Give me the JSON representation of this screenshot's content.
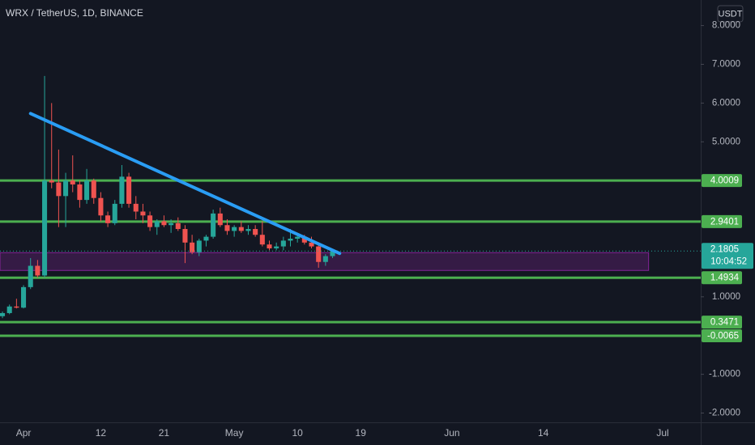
{
  "chart_data": {
    "type": "candlestick",
    "title": "WRX / TetherUS, 1D, BINANCE",
    "currency": "USDT",
    "countdown": "10:04:52",
    "categories": [
      null,
      null,
      null,
      "Apr",
      null,
      null,
      null,
      null,
      null,
      null,
      null,
      null,
      null,
      null,
      "12",
      null,
      null,
      null,
      null,
      null,
      null,
      null,
      null,
      "21",
      null,
      null,
      null,
      null,
      null,
      null,
      null,
      null,
      null,
      "May",
      null,
      null,
      null,
      null,
      null,
      null,
      null,
      null,
      "10",
      null,
      null,
      null,
      null,
      null,
      null,
      null,
      null,
      "19",
      null,
      null,
      null,
      null,
      null,
      null,
      null,
      null,
      null,
      null,
      null,
      null,
      "Jun",
      null,
      null,
      null,
      null,
      null,
      null,
      null,
      null,
      null,
      null,
      null,
      null,
      "14",
      null,
      null,
      null,
      null,
      null,
      null,
      null,
      null,
      null,
      null,
      null,
      null,
      null,
      null,
      null,
      null,
      "Jul",
      null,
      null,
      null,
      null,
      null
    ],
    "open": [
      0.5,
      0.58,
      0.75,
      0.72,
      1.25,
      1.8,
      1.55,
      4.0,
      3.95,
      3.6,
      4.0,
      3.9,
      3.5,
      4.0,
      3.55,
      3.1,
      2.9,
      3.4,
      4.1,
      3.4,
      3.2,
      3.1,
      2.8,
      2.95,
      2.85,
      2.9,
      2.75,
      2.4,
      2.15,
      2.45,
      2.55,
      3.15,
      2.85,
      2.7,
      2.8,
      2.7,
      2.75,
      2.6,
      2.35,
      2.25,
      2.3,
      2.45,
      2.5,
      2.55,
      2.4,
      2.3,
      1.9,
      2.05,
      null,
      null,
      null,
      null,
      null,
      null,
      null,
      null,
      null,
      null,
      null,
      null,
      null,
      null,
      null,
      null,
      null,
      null,
      null,
      null,
      null,
      null,
      null,
      null,
      null,
      null,
      null,
      null,
      null,
      null,
      null,
      null,
      null,
      null,
      null,
      null,
      null,
      null,
      null,
      null,
      null,
      null,
      null,
      null,
      null,
      null,
      null,
      null,
      null,
      null,
      null,
      null
    ],
    "high": [
      0.62,
      0.8,
      0.95,
      1.3,
      2.0,
      1.95,
      6.7,
      6.0,
      4.8,
      4.2,
      4.65,
      4.0,
      4.3,
      4.05,
      3.7,
      3.2,
      3.5,
      4.4,
      4.2,
      3.6,
      3.4,
      3.2,
      3.0,
      3.1,
      3.0,
      3.05,
      2.85,
      2.6,
      2.5,
      2.6,
      3.25,
      3.3,
      3.0,
      2.85,
      2.95,
      2.85,
      2.85,
      2.95,
      2.45,
      2.4,
      2.55,
      2.75,
      2.65,
      2.6,
      2.55,
      2.4,
      2.1,
      2.2,
      null,
      null,
      null,
      null,
      null,
      null,
      null,
      null,
      null,
      null,
      null,
      null,
      null,
      null,
      null,
      null,
      null,
      null,
      null,
      null,
      null,
      null,
      null,
      null,
      null,
      null,
      null,
      null,
      null,
      null,
      null,
      null,
      null,
      null,
      null,
      null,
      null,
      null,
      null,
      null,
      null,
      null,
      null,
      null,
      null,
      null,
      null,
      null,
      null,
      null,
      null,
      null
    ],
    "low": [
      0.45,
      0.55,
      0.7,
      0.7,
      1.2,
      1.5,
      1.5,
      3.8,
      2.8,
      2.8,
      3.7,
      3.3,
      3.4,
      3.4,
      2.95,
      2.8,
      2.85,
      3.3,
      3.3,
      3.0,
      2.9,
      2.7,
      2.6,
      2.8,
      2.65,
      2.7,
      1.87,
      2.1,
      2.05,
      2.3,
      2.5,
      2.8,
      2.6,
      2.55,
      2.65,
      2.6,
      2.55,
      2.3,
      2.2,
      2.2,
      2.2,
      2.3,
      2.4,
      2.35,
      2.25,
      1.75,
      1.8,
      2.0,
      null,
      null,
      null,
      null,
      null,
      null,
      null,
      null,
      null,
      null,
      null,
      null,
      null,
      null,
      null,
      null,
      null,
      null,
      null,
      null,
      null,
      null,
      null,
      null,
      null,
      null,
      null,
      null,
      null,
      null,
      null,
      null,
      null,
      null,
      null,
      null,
      null,
      null,
      null,
      null,
      null,
      null,
      null,
      null,
      null,
      null,
      null,
      null,
      null,
      null,
      null,
      null
    ],
    "close": [
      0.58,
      0.75,
      0.72,
      1.25,
      1.8,
      1.55,
      4.0,
      3.95,
      3.6,
      4.0,
      3.9,
      3.5,
      4.0,
      3.55,
      3.1,
      2.9,
      3.4,
      4.1,
      3.4,
      3.2,
      3.1,
      2.8,
      2.95,
      2.85,
      2.9,
      2.75,
      2.4,
      2.15,
      2.45,
      2.55,
      3.15,
      2.85,
      2.7,
      2.8,
      2.7,
      2.75,
      2.6,
      2.35,
      2.25,
      2.3,
      2.45,
      2.5,
      2.55,
      2.4,
      2.3,
      1.9,
      2.05,
      2.1805,
      null,
      null,
      null,
      null,
      null,
      null,
      null,
      null,
      null,
      null,
      null,
      null,
      null,
      null,
      null,
      null,
      null,
      null,
      null,
      null,
      null,
      null,
      null,
      null,
      null,
      null,
      null,
      null,
      null,
      null,
      null,
      null,
      null,
      null,
      null,
      null,
      null,
      null,
      null,
      null,
      null,
      null,
      null,
      null,
      null,
      null,
      null,
      null,
      null,
      null,
      null,
      null
    ],
    "up_color": "#26a69a",
    "down_color": "#ef5350",
    "ylim": [
      -2.24,
      8.66
    ],
    "yticks": [
      {
        "value": 8,
        "label": "8.0000"
      },
      {
        "value": 7,
        "label": "7.0000"
      },
      {
        "value": 6,
        "label": "6.0000"
      },
      {
        "value": 5,
        "label": "5.0000"
      },
      {
        "value": 1,
        "label": "1.0000"
      },
      {
        "value": -1,
        "label": "-1.0000"
      },
      {
        "value": -2,
        "label": "-2.0000"
      }
    ],
    "levels": [
      4.0009,
      2.9401,
      1.4934,
      0.3471,
      -0.0065
    ],
    "level_color": "#4caf50",
    "zone": {
      "low": 1.68,
      "high": 2.14,
      "end_index": 92,
      "color": "#9c27b0"
    },
    "trendline": {
      "start": [
        4,
        5.73
      ],
      "end": [
        48,
        2.12
      ],
      "color": "#2a9df4"
    },
    "grid": false
  }
}
